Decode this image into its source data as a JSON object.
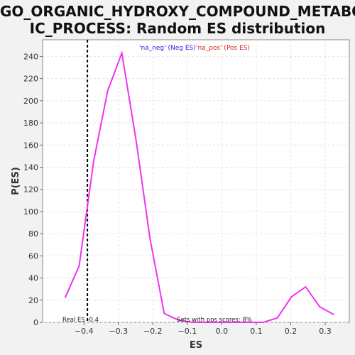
{
  "chart_data": {
    "type": "line",
    "title": "GO_ORGANIC_HYDROXY_COMPOUND_METABOL\nIC_PROCESS: Random ES distribution",
    "xlabel": "ES",
    "ylabel": "P(ES)",
    "xlim": [
      -0.52,
      0.37
    ],
    "ylim": [
      0,
      255
    ],
    "x_ticks": [
      -0.4,
      -0.3,
      -0.2,
      -0.1,
      0.0,
      0.1,
      0.2,
      0.3
    ],
    "x_tick_labels": [
      "−0.4",
      "−0.3",
      "−0.2",
      "−0.1",
      "0.0",
      "0.1",
      "0.2",
      "0.3"
    ],
    "y_ticks": [
      0,
      20,
      40,
      60,
      80,
      100,
      120,
      140,
      160,
      180,
      200,
      220,
      240
    ],
    "grid": true,
    "series": [
      {
        "name": "",
        "color": "#ee33ee",
        "x": [
          -0.455,
          -0.414,
          -0.372,
          -0.331,
          -0.29,
          -0.249,
          -0.208,
          -0.167,
          -0.126,
          -0.085,
          -0.044,
          -0.003,
          0.038,
          0.079,
          0.12,
          0.161,
          0.202,
          0.243,
          0.284,
          0.325
        ],
        "y": [
          22,
          51,
          145,
          209,
          243,
          165,
          75,
          8,
          2,
          0,
          0,
          0,
          0,
          0,
          0,
          4,
          23,
          32,
          14,
          7
        ]
      }
    ],
    "real_es": -0.39,
    "real_es_label": "Real ES -0.4",
    "annotation": "Sets with pos scores: 8%",
    "legend": [
      {
        "label": "'na_neg' (Neg ES)",
        "color": "#2222dd"
      },
      {
        "label": "'na_pos' (Pos ES)",
        "color": "#dd2222"
      }
    ],
    "legend_position": "top-center"
  }
}
